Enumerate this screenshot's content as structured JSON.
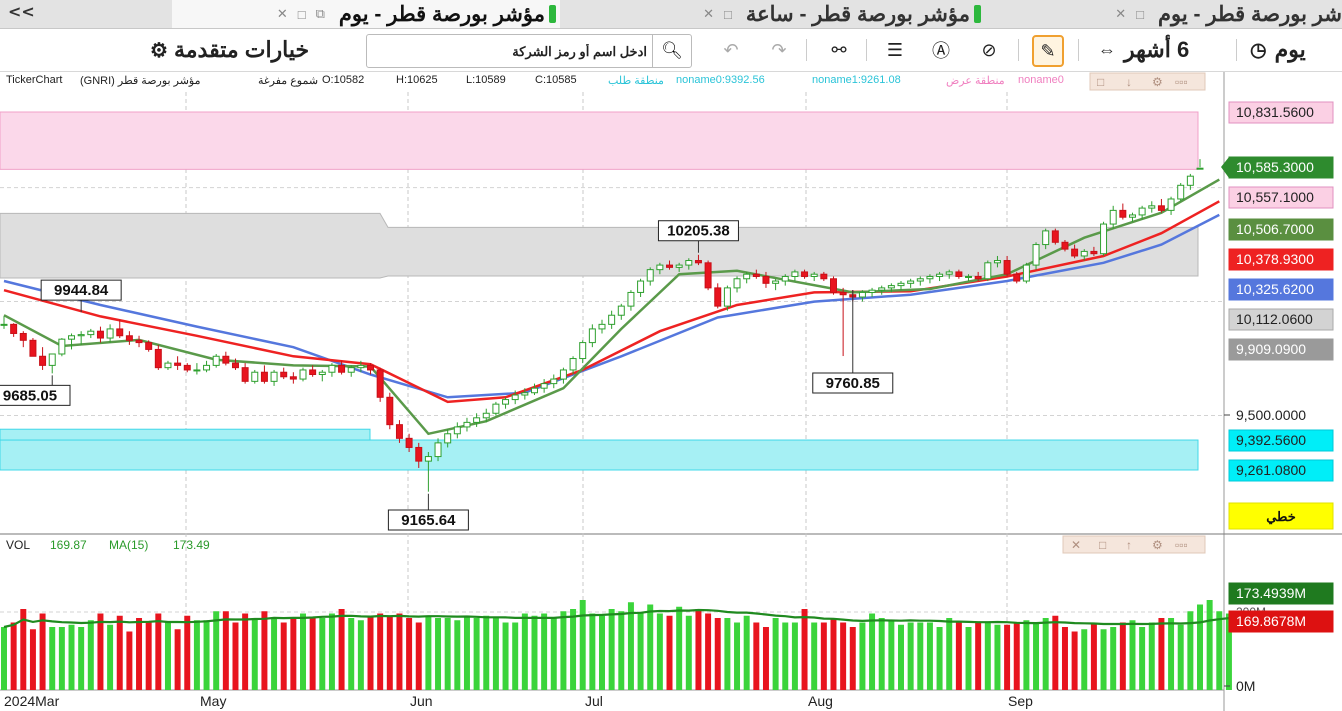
{
  "tabs": {
    "overflow": "<<",
    "tab1": "مؤشر بورصة قطر - يوم",
    "tab2": "مؤشر بورصة قطر - ساعة",
    "tab3": "شر بورصة قطر - يوم"
  },
  "toolbar": {
    "advanced_label": "خيارات متقدمة",
    "search_placeholder": "ادخل اسم أو رمز الشركة",
    "range_label": "6 أشهر",
    "interval_label": "يوم"
  },
  "info": {
    "platform": "TickerChart",
    "symbol": "مؤشر بورصة قطر (GNRI)",
    "style": "شموع مفرغة",
    "open": "O:10582",
    "high": "H:10625",
    "low": "L:10589",
    "close": "C:10585",
    "demand_zone": "منطقة طلب",
    "noname0": "noname0:9392.56",
    "noname1": "noname1:9261.08",
    "supply_zone": "منطقة عرض",
    "noname_trunc": "noname0"
  },
  "colors": {
    "up": "#3bd43b",
    "down": "#e8141e",
    "ma_green": "#5a9a4a",
    "ma_red": "#ee2222",
    "ma_blue": "#5577dd",
    "zone_pink": "#fbd8ea",
    "zone_grey": "#dedede",
    "zone_cyan": "#a6f0f4",
    "vol_ma": "#1f8a1f"
  },
  "chart_data": [
    {
      "type": "candlestick",
      "x_axis": [
        "2024Mar",
        "May",
        "Jun",
        "Jul",
        "Aug",
        "Sep"
      ],
      "ohlc": [
        [
          9900,
          9935,
          9880,
          9900
        ],
        [
          9900,
          9905,
          9845,
          9860
        ],
        [
          9860,
          9870,
          9800,
          9830
        ],
        [
          9830,
          9840,
          9760,
          9760
        ],
        [
          9760,
          9800,
          9700,
          9720
        ],
        [
          9720,
          9770,
          9685,
          9770
        ],
        [
          9770,
          9840,
          9760,
          9835
        ],
        [
          9835,
          9860,
          9790,
          9850
        ],
        [
          9850,
          9870,
          9810,
          9855
        ],
        [
          9855,
          9880,
          9840,
          9870
        ],
        [
          9870,
          9890,
          9820,
          9840
        ],
        [
          9840,
          9900,
          9820,
          9880
        ],
        [
          9880,
          9920,
          9840,
          9850
        ],
        [
          9850,
          9870,
          9810,
          9830
        ],
        [
          9830,
          9850,
          9800,
          9820
        ],
        [
          9820,
          9830,
          9780,
          9790
        ],
        [
          9790,
          9810,
          9700,
          9710
        ],
        [
          9710,
          9740,
          9700,
          9730
        ],
        [
          9730,
          9760,
          9700,
          9720
        ],
        [
          9720,
          9730,
          9690,
          9700
        ],
        [
          9700,
          9730,
          9680,
          9700
        ],
        [
          9700,
          9740,
          9690,
          9720
        ],
        [
          9720,
          9770,
          9710,
          9760
        ],
        [
          9760,
          9780,
          9720,
          9730
        ],
        [
          9730,
          9750,
          9700,
          9710
        ],
        [
          9710,
          9730,
          9640,
          9650
        ],
        [
          9650,
          9700,
          9640,
          9690
        ],
        [
          9690,
          9720,
          9640,
          9650
        ],
        [
          9650,
          9700,
          9630,
          9690
        ],
        [
          9690,
          9710,
          9660,
          9670
        ],
        [
          9670,
          9690,
          9640,
          9660
        ],
        [
          9660,
          9710,
          9650,
          9700
        ],
        [
          9700,
          9720,
          9670,
          9680
        ],
        [
          9680,
          9700,
          9650,
          9690
        ],
        [
          9690,
          9730,
          9670,
          9720
        ],
        [
          9720,
          9740,
          9680,
          9690
        ],
        [
          9690,
          9720,
          9670,
          9710
        ],
        [
          9710,
          9740,
          9690,
          9720
        ],
        [
          9720,
          9730,
          9680,
          9700
        ],
        [
          9700,
          9710,
          9560,
          9580
        ],
        [
          9580,
          9600,
          9440,
          9460
        ],
        [
          9460,
          9480,
          9380,
          9400
        ],
        [
          9400,
          9420,
          9340,
          9360
        ],
        [
          9360,
          9380,
          9270,
          9300
        ],
        [
          9300,
          9340,
          9166,
          9320
        ],
        [
          9320,
          9400,
          9300,
          9380
        ],
        [
          9380,
          9440,
          9360,
          9420
        ],
        [
          9420,
          9470,
          9400,
          9450
        ],
        [
          9450,
          9490,
          9430,
          9470
        ],
        [
          9470,
          9510,
          9450,
          9490
        ],
        [
          9490,
          9530,
          9470,
          9510
        ],
        [
          9510,
          9560,
          9500,
          9550
        ],
        [
          9550,
          9580,
          9530,
          9570
        ],
        [
          9570,
          9610,
          9550,
          9590
        ],
        [
          9590,
          9620,
          9570,
          9600
        ],
        [
          9600,
          9640,
          9590,
          9620
        ],
        [
          9620,
          9660,
          9600,
          9640
        ],
        [
          9640,
          9680,
          9620,
          9660
        ],
        [
          9660,
          9710,
          9640,
          9700
        ],
        [
          9700,
          9760,
          9680,
          9750
        ],
        [
          9750,
          9830,
          9730,
          9820
        ],
        [
          9820,
          9900,
          9800,
          9880
        ],
        [
          9880,
          9920,
          9860,
          9900
        ],
        [
          9900,
          9960,
          9880,
          9940
        ],
        [
          9940,
          9990,
          9920,
          9980
        ],
        [
          9980,
          10050,
          9960,
          10040
        ],
        [
          10040,
          10100,
          10020,
          10090
        ],
        [
          10090,
          10150,
          10070,
          10140
        ],
        [
          10140,
          10170,
          10120,
          10160
        ],
        [
          10160,
          10180,
          10140,
          10150
        ],
        [
          10150,
          10170,
          10130,
          10160
        ],
        [
          10160,
          10190,
          10140,
          10180
        ],
        [
          10180,
          10205,
          10160,
          10170
        ],
        [
          10170,
          10180,
          10050,
          10060
        ],
        [
          10060,
          10080,
          9970,
          9980
        ],
        [
          9980,
          10070,
          9960,
          10060
        ],
        [
          10060,
          10110,
          10040,
          10100
        ],
        [
          10100,
          10130,
          10080,
          10120
        ],
        [
          10120,
          10140,
          10100,
          10110
        ],
        [
          10110,
          10130,
          10060,
          10080
        ],
        [
          10080,
          10100,
          10050,
          10090
        ],
        [
          10090,
          10120,
          10070,
          10110
        ],
        [
          10110,
          10140,
          10090,
          10130
        ],
        [
          10130,
          10140,
          10100,
          10110
        ],
        [
          10110,
          10130,
          10090,
          10120
        ],
        [
          10120,
          10130,
          10090,
          10100
        ],
        [
          10100,
          10110,
          10030,
          10040
        ],
        [
          10040,
          10060,
          9761,
          10030
        ],
        [
          10030,
          10050,
          10000,
          10020
        ],
        [
          10020,
          10050,
          10000,
          10040
        ],
        [
          10040,
          10060,
          10020,
          10050
        ],
        [
          10050,
          10070,
          10030,
          10060
        ],
        [
          10060,
          10080,
          10040,
          10070
        ],
        [
          10070,
          10090,
          10050,
          10080
        ],
        [
          10080,
          10100,
          10060,
          10090
        ],
        [
          10090,
          10110,
          10070,
          10100
        ],
        [
          10100,
          10120,
          10080,
          10110
        ],
        [
          10110,
          10130,
          10090,
          10120
        ],
        [
          10120,
          10140,
          10100,
          10130
        ],
        [
          10130,
          10140,
          10100,
          10110
        ],
        [
          10110,
          10120,
          10090,
          10110
        ],
        [
          10110,
          10130,
          10090,
          10100
        ],
        [
          10100,
          10180,
          10090,
          10170
        ],
        [
          10170,
          10200,
          10150,
          10180
        ],
        [
          10180,
          10200,
          10110,
          10120
        ],
        [
          10120,
          10130,
          10080,
          10090
        ],
        [
          10090,
          10170,
          10080,
          10160
        ],
        [
          10160,
          10260,
          10140,
          10250
        ],
        [
          10250,
          10320,
          10230,
          10310
        ],
        [
          10310,
          10320,
          10250,
          10260
        ],
        [
          10260,
          10270,
          10220,
          10230
        ],
        [
          10230,
          10250,
          10190,
          10200
        ],
        [
          10200,
          10230,
          10180,
          10220
        ],
        [
          10220,
          10240,
          10200,
          10210
        ],
        [
          10210,
          10350,
          10200,
          10340
        ],
        [
          10340,
          10420,
          10320,
          10400
        ],
        [
          10400,
          10430,
          10360,
          10370
        ],
        [
          10370,
          10390,
          10350,
          10380
        ],
        [
          10380,
          10420,
          10360,
          10410
        ],
        [
          10410,
          10440,
          10390,
          10420
        ],
        [
          10420,
          10450,
          10390,
          10400
        ],
        [
          10400,
          10460,
          10380,
          10450
        ],
        [
          10450,
          10520,
          10440,
          10510
        ],
        [
          10510,
          10560,
          10490,
          10550
        ],
        [
          10582,
          10625,
          10589,
          10585
        ]
      ],
      "ma_fast": [
        [
          0,
          9940
        ],
        [
          6,
          9805
        ],
        [
          14,
          9832
        ],
        [
          22,
          9745
        ],
        [
          30,
          9720
        ],
        [
          38,
          9715
        ],
        [
          44,
          9420
        ],
        [
          50,
          9475
        ],
        [
          58,
          9620
        ],
        [
          64,
          9880
        ],
        [
          70,
          10120
        ],
        [
          76,
          10135
        ],
        [
          88,
          10040
        ],
        [
          96,
          10055
        ],
        [
          104,
          10120
        ],
        [
          112,
          10280
        ],
        [
          120,
          10390
        ],
        [
          126,
          10535
        ]
      ],
      "ma_mid": [
        [
          0,
          10050
        ],
        [
          10,
          9935
        ],
        [
          20,
          9850
        ],
        [
          30,
          9760
        ],
        [
          38,
          9725
        ],
        [
          46,
          9560
        ],
        [
          52,
          9580
        ],
        [
          60,
          9700
        ],
        [
          68,
          9870
        ],
        [
          76,
          9985
        ],
        [
          84,
          10040
        ],
        [
          94,
          10045
        ],
        [
          104,
          10110
        ],
        [
          114,
          10200
        ],
        [
          120,
          10300
        ],
        [
          126,
          10440
        ]
      ],
      "ma_slow": [
        [
          0,
          10090
        ],
        [
          10,
          9985
        ],
        [
          20,
          9890
        ],
        [
          30,
          9800
        ],
        [
          38,
          9680
        ],
        [
          46,
          9580
        ],
        [
          54,
          9600
        ],
        [
          64,
          9760
        ],
        [
          74,
          9930
        ],
        [
          84,
          10000
        ],
        [
          94,
          10030
        ],
        [
          104,
          10090
        ],
        [
          114,
          10170
        ],
        [
          120,
          10250
        ],
        [
          126,
          10380
        ]
      ],
      "zones": [
        {
          "from": 10580,
          "to": 10831.56
        },
        {
          "from": 10112.06,
          "to": 10325.62
        },
        {
          "from": 9261.08,
          "to": 9392.56
        }
      ],
      "callouts": [
        "10205.38",
        "9944.84",
        "9685.05",
        "9760.85",
        "9165.64"
      ],
      "price_labels": [
        "10,831.5600",
        "10,585.3000",
        "10,557.1000",
        "10,506.7000",
        "10,378.9300",
        "10,325.6200",
        "10,112.0600",
        "9,909.0900",
        "9,500.0000",
        "9,392.5600",
        "9,261.0800"
      ],
      "mode_label": "خطي",
      "ylim": [
        9120,
        11000
      ]
    },
    {
      "type": "bar",
      "title": "VOL",
      "vol_value": "169.87",
      "ma_label": "MA(15)",
      "ma_value": "173.49",
      "values": [
        140,
        150,
        180,
        135,
        170,
        140,
        140,
        145,
        140,
        155,
        170,
        145,
        165,
        130,
        160,
        150,
        170,
        150,
        135,
        165,
        155,
        155,
        175,
        175,
        150,
        170,
        160,
        175,
        160,
        150,
        160,
        170,
        160,
        160,
        170,
        180,
        160,
        155,
        165,
        170,
        165,
        170,
        160,
        150,
        165,
        160,
        160,
        155,
        165,
        160,
        165,
        160,
        150,
        150,
        170,
        165,
        170,
        160,
        175,
        180,
        200,
        170,
        165,
        180,
        175,
        195,
        170,
        190,
        170,
        165,
        185,
        165,
        180,
        170,
        160,
        160,
        150,
        165,
        150,
        140,
        160,
        150,
        150,
        180,
        150,
        150,
        160,
        150,
        140,
        150,
        170,
        160,
        155,
        145,
        150,
        150,
        150,
        140,
        160,
        150,
        140,
        150,
        150,
        145,
        145,
        150,
        155,
        150,
        160,
        165,
        140,
        130,
        135,
        150,
        135,
        140,
        150,
        155,
        140,
        150,
        160,
        160,
        145,
        175,
        190,
        200,
        175,
        170
      ],
      "price_label_hi": "173.4939M",
      "price_label_cur": "169.8678M",
      "axis_200": "200M",
      "axis_0": "0M",
      "ylim": [
        0,
        300
      ]
    }
  ]
}
